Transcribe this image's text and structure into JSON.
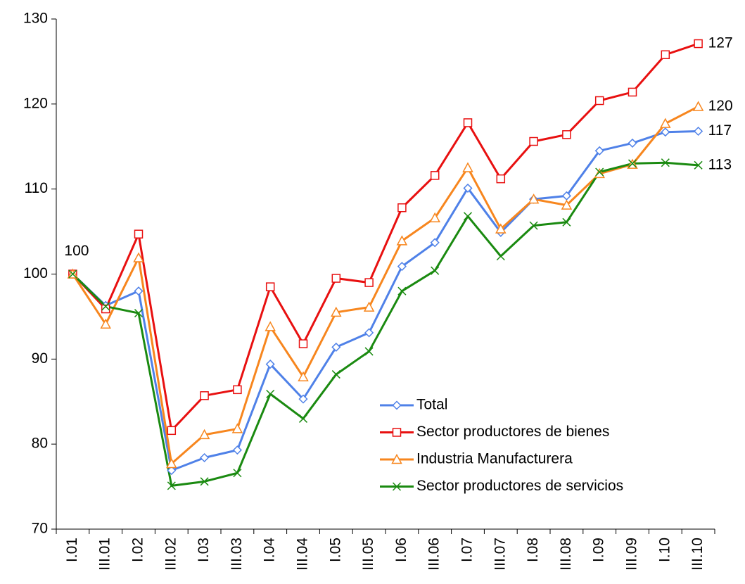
{
  "chart_data": {
    "type": "line",
    "categories": [
      "I.01",
      "III.01",
      "I.02",
      "III.02",
      "I.03",
      "III.03",
      "I.04",
      "III.04",
      "I.05",
      "III.05",
      "I.06",
      "III.06",
      "I.07",
      "III.07",
      "I.08",
      "III.08",
      "I.09",
      "III.09",
      "I.10",
      "III.10"
    ],
    "series": [
      {
        "name": "Total",
        "color": "#4f81e8",
        "marker": "diamond",
        "values": [
          100,
          96.3,
          98,
          76.9,
          78.4,
          79.3,
          89.4,
          85.3,
          91.4,
          93.1,
          100.9,
          103.7,
          110.1,
          104.9,
          108.8,
          109.2,
          114.5,
          115.4,
          116.7,
          116.8
        ],
        "value_labels": [
          "100",
          null,
          null,
          null,
          null,
          null,
          null,
          null,
          null,
          null,
          null,
          null,
          null,
          null,
          null,
          null,
          null,
          null,
          null,
          "117"
        ]
      },
      {
        "name": "Sector productores de bienes",
        "color": "#e81010",
        "marker": "square",
        "values": [
          100,
          95.9,
          104.7,
          81.6,
          85.7,
          86.4,
          98.5,
          91.8,
          99.5,
          99.0,
          107.8,
          111.6,
          117.8,
          111.2,
          115.6,
          116.4,
          120.4,
          121.4,
          125.8,
          127.1
        ],
        "value_labels": [
          null,
          null,
          null,
          null,
          null,
          null,
          null,
          null,
          null,
          null,
          null,
          null,
          null,
          null,
          null,
          null,
          null,
          null,
          null,
          "127"
        ]
      },
      {
        "name": "Industria Manufacturera",
        "color": "#f7861e",
        "marker": "triangle",
        "values": [
          100,
          94.1,
          101.9,
          77.7,
          81.1,
          81.8,
          93.8,
          87.9,
          95.5,
          96.1,
          103.9,
          106.6,
          112.5,
          105.3,
          108.8,
          108.1,
          111.8,
          112.9,
          117.7,
          119.7
        ],
        "value_labels": [
          null,
          null,
          null,
          null,
          null,
          null,
          null,
          null,
          null,
          null,
          null,
          null,
          null,
          null,
          null,
          null,
          null,
          null,
          null,
          "120"
        ]
      },
      {
        "name": "Sector productores de servicios",
        "color": "#1a8a10",
        "marker": "x",
        "values": [
          100,
          96.2,
          95.4,
          75.1,
          75.6,
          76.6,
          85.9,
          83.0,
          88.2,
          90.9,
          98.0,
          100.4,
          106.8,
          102.1,
          105.7,
          106.1,
          112.0,
          113.0,
          113.1,
          112.8
        ],
        "value_labels": [
          null,
          null,
          null,
          null,
          null,
          null,
          null,
          null,
          null,
          null,
          null,
          null,
          null,
          null,
          null,
          null,
          null,
          null,
          null,
          "113"
        ]
      }
    ],
    "ylim": [
      70,
      130
    ],
    "yticks": [
      70,
      80,
      90,
      100,
      110,
      120,
      130
    ],
    "grid": false
  }
}
